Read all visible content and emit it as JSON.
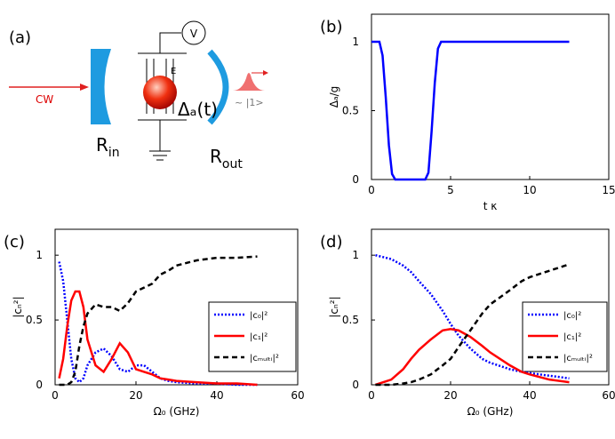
{
  "diagram": {
    "panel": "(a)",
    "input": "CW",
    "field": "E",
    "voltmeter": "V",
    "detuning": "Δₐ(t)",
    "output_state": "~ |1>",
    "mirror_in": {
      "text": "R",
      "sub": "in"
    },
    "mirror_out": {
      "text": "R",
      "sub": "out"
    }
  },
  "chart_data": [
    {
      "type": "line",
      "panel": "(b)",
      "xlabel": "t κ",
      "ylabel": "Δₐ/g",
      "xlim": [
        0,
        15
      ],
      "ylim": [
        0,
        1.2
      ],
      "xticks": [
        0,
        5,
        10,
        15
      ],
      "yticks": [
        0,
        0.5,
        1
      ],
      "x": [
        0,
        0.5,
        0.7,
        0.9,
        1.1,
        1.3,
        1.5,
        3.4,
        3.6,
        3.8,
        4.0,
        4.2,
        4.4,
        4.6,
        12.5
      ],
      "series": [
        {
          "name": null,
          "color": "#0000ff",
          "dash": "solid",
          "values": [
            1,
            1,
            0.9,
            0.6,
            0.25,
            0.04,
            0,
            0,
            0.05,
            0.35,
            0.7,
            0.95,
            1,
            1,
            1
          ]
        }
      ]
    },
    {
      "type": "line",
      "panel": "(c)",
      "xlabel": "Ω₀ (GHz)",
      "ylabel": "|cₙ²|",
      "xlim": [
        0,
        60
      ],
      "ylim": [
        0,
        1.2
      ],
      "xticks": [
        0,
        20,
        40,
        60
      ],
      "yticks": [
        0,
        0.5,
        1
      ],
      "x": [
        1,
        2,
        3,
        4,
        5,
        6,
        7,
        8,
        10,
        12,
        14,
        16,
        18,
        20,
        22,
        24,
        26,
        28,
        30,
        35,
        40,
        45,
        50
      ],
      "series": [
        {
          "name": "|c₀|²",
          "color": "#0000ff",
          "dash": "dotted",
          "values": [
            0.95,
            0.8,
            0.5,
            0.2,
            0.05,
            0.02,
            0.05,
            0.15,
            0.25,
            0.28,
            0.22,
            0.12,
            0.1,
            0.15,
            0.15,
            0.1,
            0.05,
            0.03,
            0.02,
            0.01,
            0.01,
            0,
            0
          ]
        },
        {
          "name": "|c₁|²",
          "color": "#ff0000",
          "dash": "solid",
          "values": [
            0.05,
            0.2,
            0.45,
            0.65,
            0.72,
            0.72,
            0.6,
            0.35,
            0.15,
            0.1,
            0.2,
            0.32,
            0.25,
            0.12,
            0.1,
            0.08,
            0.05,
            0.04,
            0.03,
            0.02,
            0.01,
            0.01,
            0
          ]
        },
        {
          "name": "|cₘᵤₗₜᵢ|²",
          "color": "#000000",
          "dash": "dashed",
          "values": [
            0,
            0,
            0,
            0.02,
            0.1,
            0.3,
            0.45,
            0.55,
            0.62,
            0.6,
            0.6,
            0.57,
            0.63,
            0.72,
            0.75,
            0.78,
            0.85,
            0.88,
            0.92,
            0.96,
            0.98,
            0.98,
            0.99
          ]
        }
      ]
    },
    {
      "type": "line",
      "panel": "(d)",
      "xlabel": "Ω₀ (GHz)",
      "ylabel": "|cₙ²|",
      "xlim": [
        0,
        60
      ],
      "ylim": [
        0,
        1.2
      ],
      "xticks": [
        0,
        20,
        40,
        60
      ],
      "yticks": [
        0,
        0.5,
        1
      ],
      "x": [
        1,
        5,
        8,
        10,
        12,
        15,
        18,
        20,
        22,
        25,
        28,
        30,
        35,
        38,
        40,
        45,
        50
      ],
      "series": [
        {
          "name": "|c₀|²",
          "color": "#0000ff",
          "dash": "dotted",
          "values": [
            1,
            0.97,
            0.92,
            0.87,
            0.8,
            0.7,
            0.57,
            0.47,
            0.38,
            0.28,
            0.2,
            0.17,
            0.12,
            0.1,
            0.09,
            0.07,
            0.05
          ]
        },
        {
          "name": "|c₁|²",
          "color": "#ff0000",
          "dash": "solid",
          "values": [
            0,
            0.04,
            0.12,
            0.2,
            0.27,
            0.35,
            0.42,
            0.43,
            0.42,
            0.37,
            0.3,
            0.25,
            0.15,
            0.1,
            0.08,
            0.04,
            0.02
          ]
        },
        {
          "name": "|cₘᵤₗₜᵢ|²",
          "color": "#000000",
          "dash": "dashed",
          "values": [
            0,
            0,
            0.01,
            0.02,
            0.04,
            0.08,
            0.15,
            0.2,
            0.29,
            0.42,
            0.55,
            0.62,
            0.73,
            0.8,
            0.83,
            0.88,
            0.93
          ]
        }
      ]
    }
  ]
}
